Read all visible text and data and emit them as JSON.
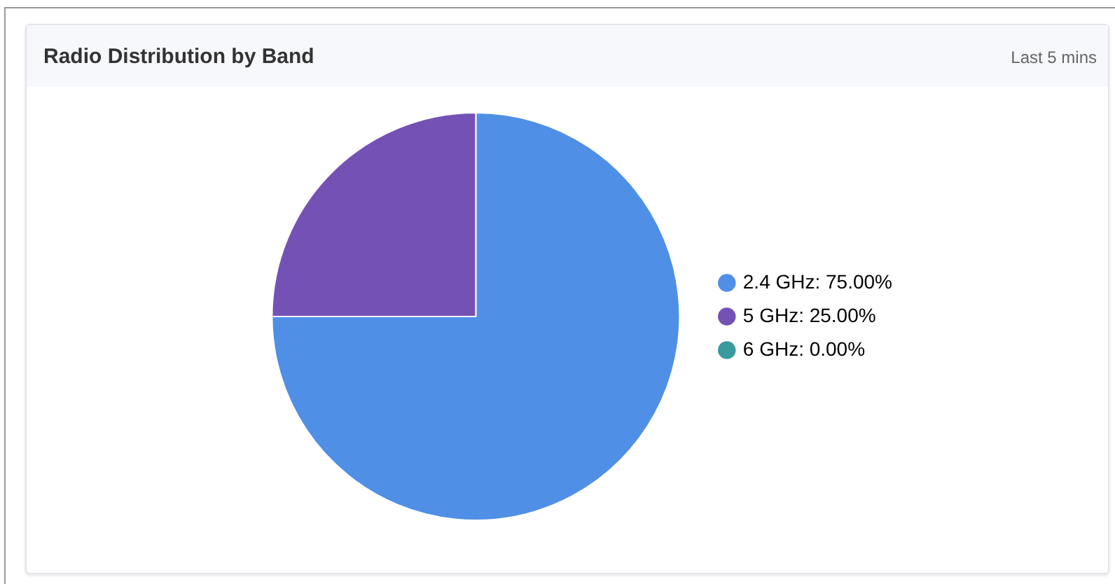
{
  "chart_data": {
    "type": "pie",
    "title": "Radio Distribution by Band",
    "subtitle": "Last 5 mins",
    "categories": [
      "2.4 GHz",
      "5 GHz",
      "6 GHz"
    ],
    "values": [
      75,
      25,
      0
    ],
    "colors": [
      "#4f8fe6",
      "#7452b5",
      "#3a9a9e"
    ],
    "value_labels": [
      "75.00%",
      "25.00%",
      "0.00%"
    ],
    "legend": "right"
  }
}
